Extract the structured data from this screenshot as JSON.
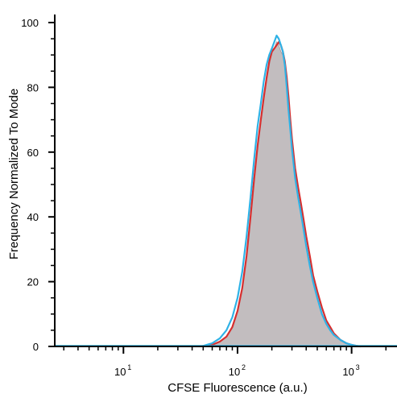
{
  "chart_data": {
    "type": "area",
    "xlabel": "CFSE Fluorescence (a.u.)",
    "ylabel": "Frequency Normalized To Mode",
    "x_scale": "log",
    "xlim": [
      2.5,
      2500
    ],
    "ylim": [
      0,
      100
    ],
    "yticks": [
      "0",
      "20",
      "40",
      "60",
      "80",
      "100"
    ],
    "xticks": [
      {
        "value": 10,
        "base": "10",
        "exp": "1"
      },
      {
        "value": 100,
        "base": "10",
        "exp": "2"
      },
      {
        "value": 1000,
        "base": "10",
        "exp": "3"
      }
    ],
    "colors": {
      "gray": "#c2bdbf",
      "red": "#d62f2f",
      "blue": "#2fb2e6"
    },
    "series": [
      {
        "color_key": "gray",
        "x": [
          48,
          60,
          70,
          80,
          90,
          100,
          110,
          120,
          130,
          140,
          150,
          160,
          170,
          180,
          190,
          200,
          210,
          220,
          230,
          240,
          250,
          260,
          270,
          280,
          290,
          300,
          320,
          340,
          360,
          380,
          400,
          430,
          460,
          500,
          550,
          600,
          650,
          700,
          800,
          900,
          1000,
          1100,
          1200
        ],
        "y": [
          0,
          0.5,
          1.5,
          3,
          6,
          11,
          18,
          28,
          40,
          52,
          62,
          69,
          76,
          82,
          87,
          91,
          92,
          94,
          93,
          91,
          90,
          86,
          80,
          74,
          67,
          61,
          52,
          46,
          41,
          36,
          31,
          25,
          20,
          15,
          10,
          7,
          5,
          3.5,
          2,
          1,
          0.5,
          0.2,
          0
        ]
      },
      {
        "color_key": "red",
        "x": [
          50,
          60,
          70,
          80,
          90,
          100,
          110,
          120,
          130,
          140,
          150,
          160,
          170,
          180,
          190,
          200,
          210,
          220,
          230,
          240,
          250,
          260,
          270,
          280,
          290,
          300,
          320,
          340,
          360,
          380,
          400,
          430,
          460,
          500,
          550,
          600,
          650,
          700,
          800,
          900,
          1000,
          1100,
          1200
        ],
        "y": [
          0,
          0.5,
          1.5,
          3,
          6,
          11,
          18,
          28,
          40,
          52,
          62,
          70,
          77,
          83,
          88,
          91,
          92,
          93,
          94,
          93,
          91,
          88,
          83,
          77,
          70,
          64,
          55,
          49,
          44,
          39,
          34,
          28,
          22,
          17,
          12,
          8,
          6,
          4,
          2,
          1,
          0.5,
          0.2,
          0
        ]
      },
      {
        "color_key": "blue",
        "x": [
          48,
          60,
          70,
          80,
          90,
          100,
          110,
          120,
          130,
          140,
          150,
          160,
          170,
          180,
          190,
          200,
          210,
          220,
          230,
          240,
          250,
          260,
          270,
          280,
          290,
          300,
          320,
          340,
          360,
          380,
          400,
          430,
          460,
          500,
          550,
          600,
          650,
          700,
          800,
          900,
          1000,
          1100,
          1200
        ],
        "y": [
          0,
          1,
          2.5,
          5,
          9,
          15,
          23,
          34,
          46,
          58,
          68,
          75,
          82,
          87,
          90,
          92,
          94,
          96,
          95,
          93,
          91,
          87,
          80,
          73,
          67,
          61,
          52,
          46,
          41,
          36,
          31,
          25,
          20,
          15,
          10,
          7,
          5,
          3.5,
          2,
          1,
          0.5,
          0.2,
          0
        ]
      }
    ]
  }
}
